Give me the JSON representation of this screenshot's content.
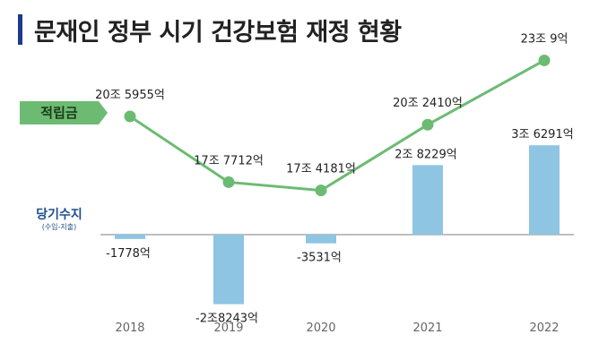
{
  "title": "문재인 정부 시기 건강보험 재정 현황",
  "labels": {
    "fund": "적립금",
    "balance": "당기수지",
    "balance_sub": "(수입-지출)"
  },
  "colors": {
    "title_accent": "#1f3a8a",
    "line": "#6dbb73",
    "bar": "#8ec5e3",
    "badge_fund": "#6dbb73",
    "axis": "#aaaaaa"
  },
  "chart_data": {
    "type": "bar+line",
    "categories": [
      "2018",
      "2019",
      "2020",
      "2021",
      "2022"
    ],
    "series": [
      {
        "name": "적립금",
        "type": "line",
        "values": [
          20.5955,
          17.7712,
          17.4181,
          20.241,
          23.0009
        ],
        "labels": [
          "20조 5955억",
          "17조 7712억",
          "17조 4181억",
          "20조 2410억",
          "23조 9억"
        ]
      },
      {
        "name": "당기수지",
        "type": "bar",
        "values": [
          -0.1778,
          -2.8243,
          -0.3531,
          2.8229,
          3.6291
        ],
        "labels": [
          "-1778억",
          "-2조8243억",
          "-3531억",
          "2조 8229억",
          "3조 6291억"
        ]
      }
    ]
  }
}
